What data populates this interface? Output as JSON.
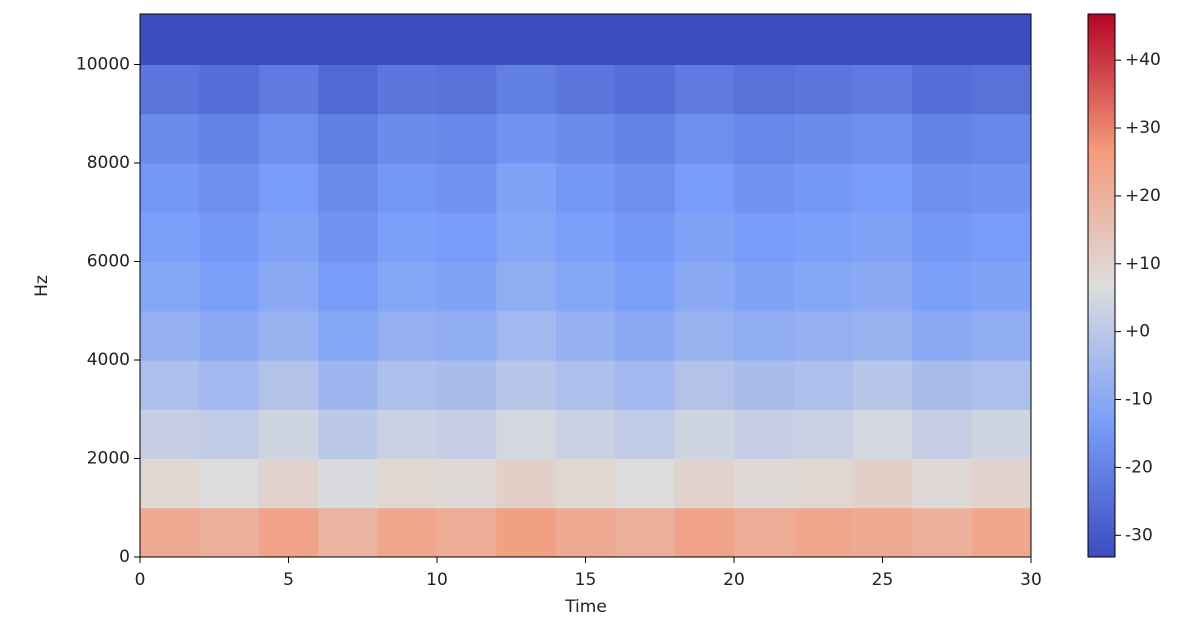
{
  "chart_data": {
    "type": "heatmap",
    "xlabel": "Time",
    "ylabel": "Hz",
    "colormap": "coolwarm",
    "x": [
      0,
      2,
      4,
      6,
      8,
      10,
      12,
      14,
      16,
      18,
      20,
      22,
      24,
      26,
      28,
      30
    ],
    "y": [
      0,
      1000,
      2000,
      3000,
      4000,
      5000,
      6000,
      7000,
      8000,
      9000,
      10000,
      11025
    ],
    "z": [
      [
        22,
        20,
        24,
        19,
        23,
        21,
        25,
        22,
        20,
        24,
        21,
        23,
        22,
        20,
        23
      ],
      [
        9,
        7,
        10,
        6,
        9,
        8,
        11,
        9,
        7,
        10,
        8,
        9,
        11,
        8,
        10
      ],
      [
        2,
        1,
        4,
        0,
        3,
        2,
        5,
        3,
        1,
        4,
        2,
        3,
        5,
        2,
        4
      ],
      [
        -3,
        -5,
        -2,
        -6,
        -3,
        -4,
        -1,
        -3,
        -5,
        -2,
        -4,
        -3,
        -1,
        -4,
        -3
      ],
      [
        -8,
        -10,
        -7,
        -11,
        -8,
        -9,
        -5,
        -8,
        -10,
        -7,
        -9,
        -8,
        -7,
        -10,
        -9
      ],
      [
        -11,
        -13,
        -10,
        -14,
        -11,
        -12,
        -9,
        -11,
        -13,
        -10,
        -12,
        -11,
        -10,
        -13,
        -12
      ],
      [
        -13,
        -15,
        -12,
        -16,
        -13,
        -14,
        -11,
        -13,
        -15,
        -12,
        -14,
        -13,
        -12,
        -15,
        -14
      ],
      [
        -15,
        -17,
        -14,
        -18,
        -15,
        -16,
        -12,
        -15,
        -17,
        -14,
        -16,
        -15,
        -14,
        -17,
        -16
      ],
      [
        -18,
        -20,
        -17,
        -21,
        -18,
        -19,
        -16,
        -18,
        -20,
        -17,
        -19,
        -18,
        -17,
        -20,
        -19
      ],
      [
        -23,
        -25,
        -22,
        -26,
        -23,
        -24,
        -21,
        -23,
        -25,
        -22,
        -24,
        -23,
        -22,
        -25,
        -24
      ],
      [
        -33,
        -33,
        -33,
        -33,
        -33,
        -33,
        -33,
        -33,
        -33,
        -33,
        -33,
        -33,
        -33,
        -33,
        -33
      ]
    ],
    "xlim": [
      0,
      30
    ],
    "xticks": [
      0,
      5,
      10,
      15,
      20,
      25,
      30
    ],
    "ylim": [
      0,
      11025
    ],
    "yticks": [
      0,
      2000,
      4000,
      6000,
      8000,
      10000
    ],
    "clim": [
      -33.2,
      46.8
    ],
    "cticks": [
      {
        "value": 40,
        "label": "+40"
      },
      {
        "value": 30,
        "label": "+30"
      },
      {
        "value": 20,
        "label": "+20"
      },
      {
        "value": 10,
        "label": "+10"
      },
      {
        "value": 0,
        "label": "+0"
      },
      -10,
      -20,
      -30
    ]
  }
}
